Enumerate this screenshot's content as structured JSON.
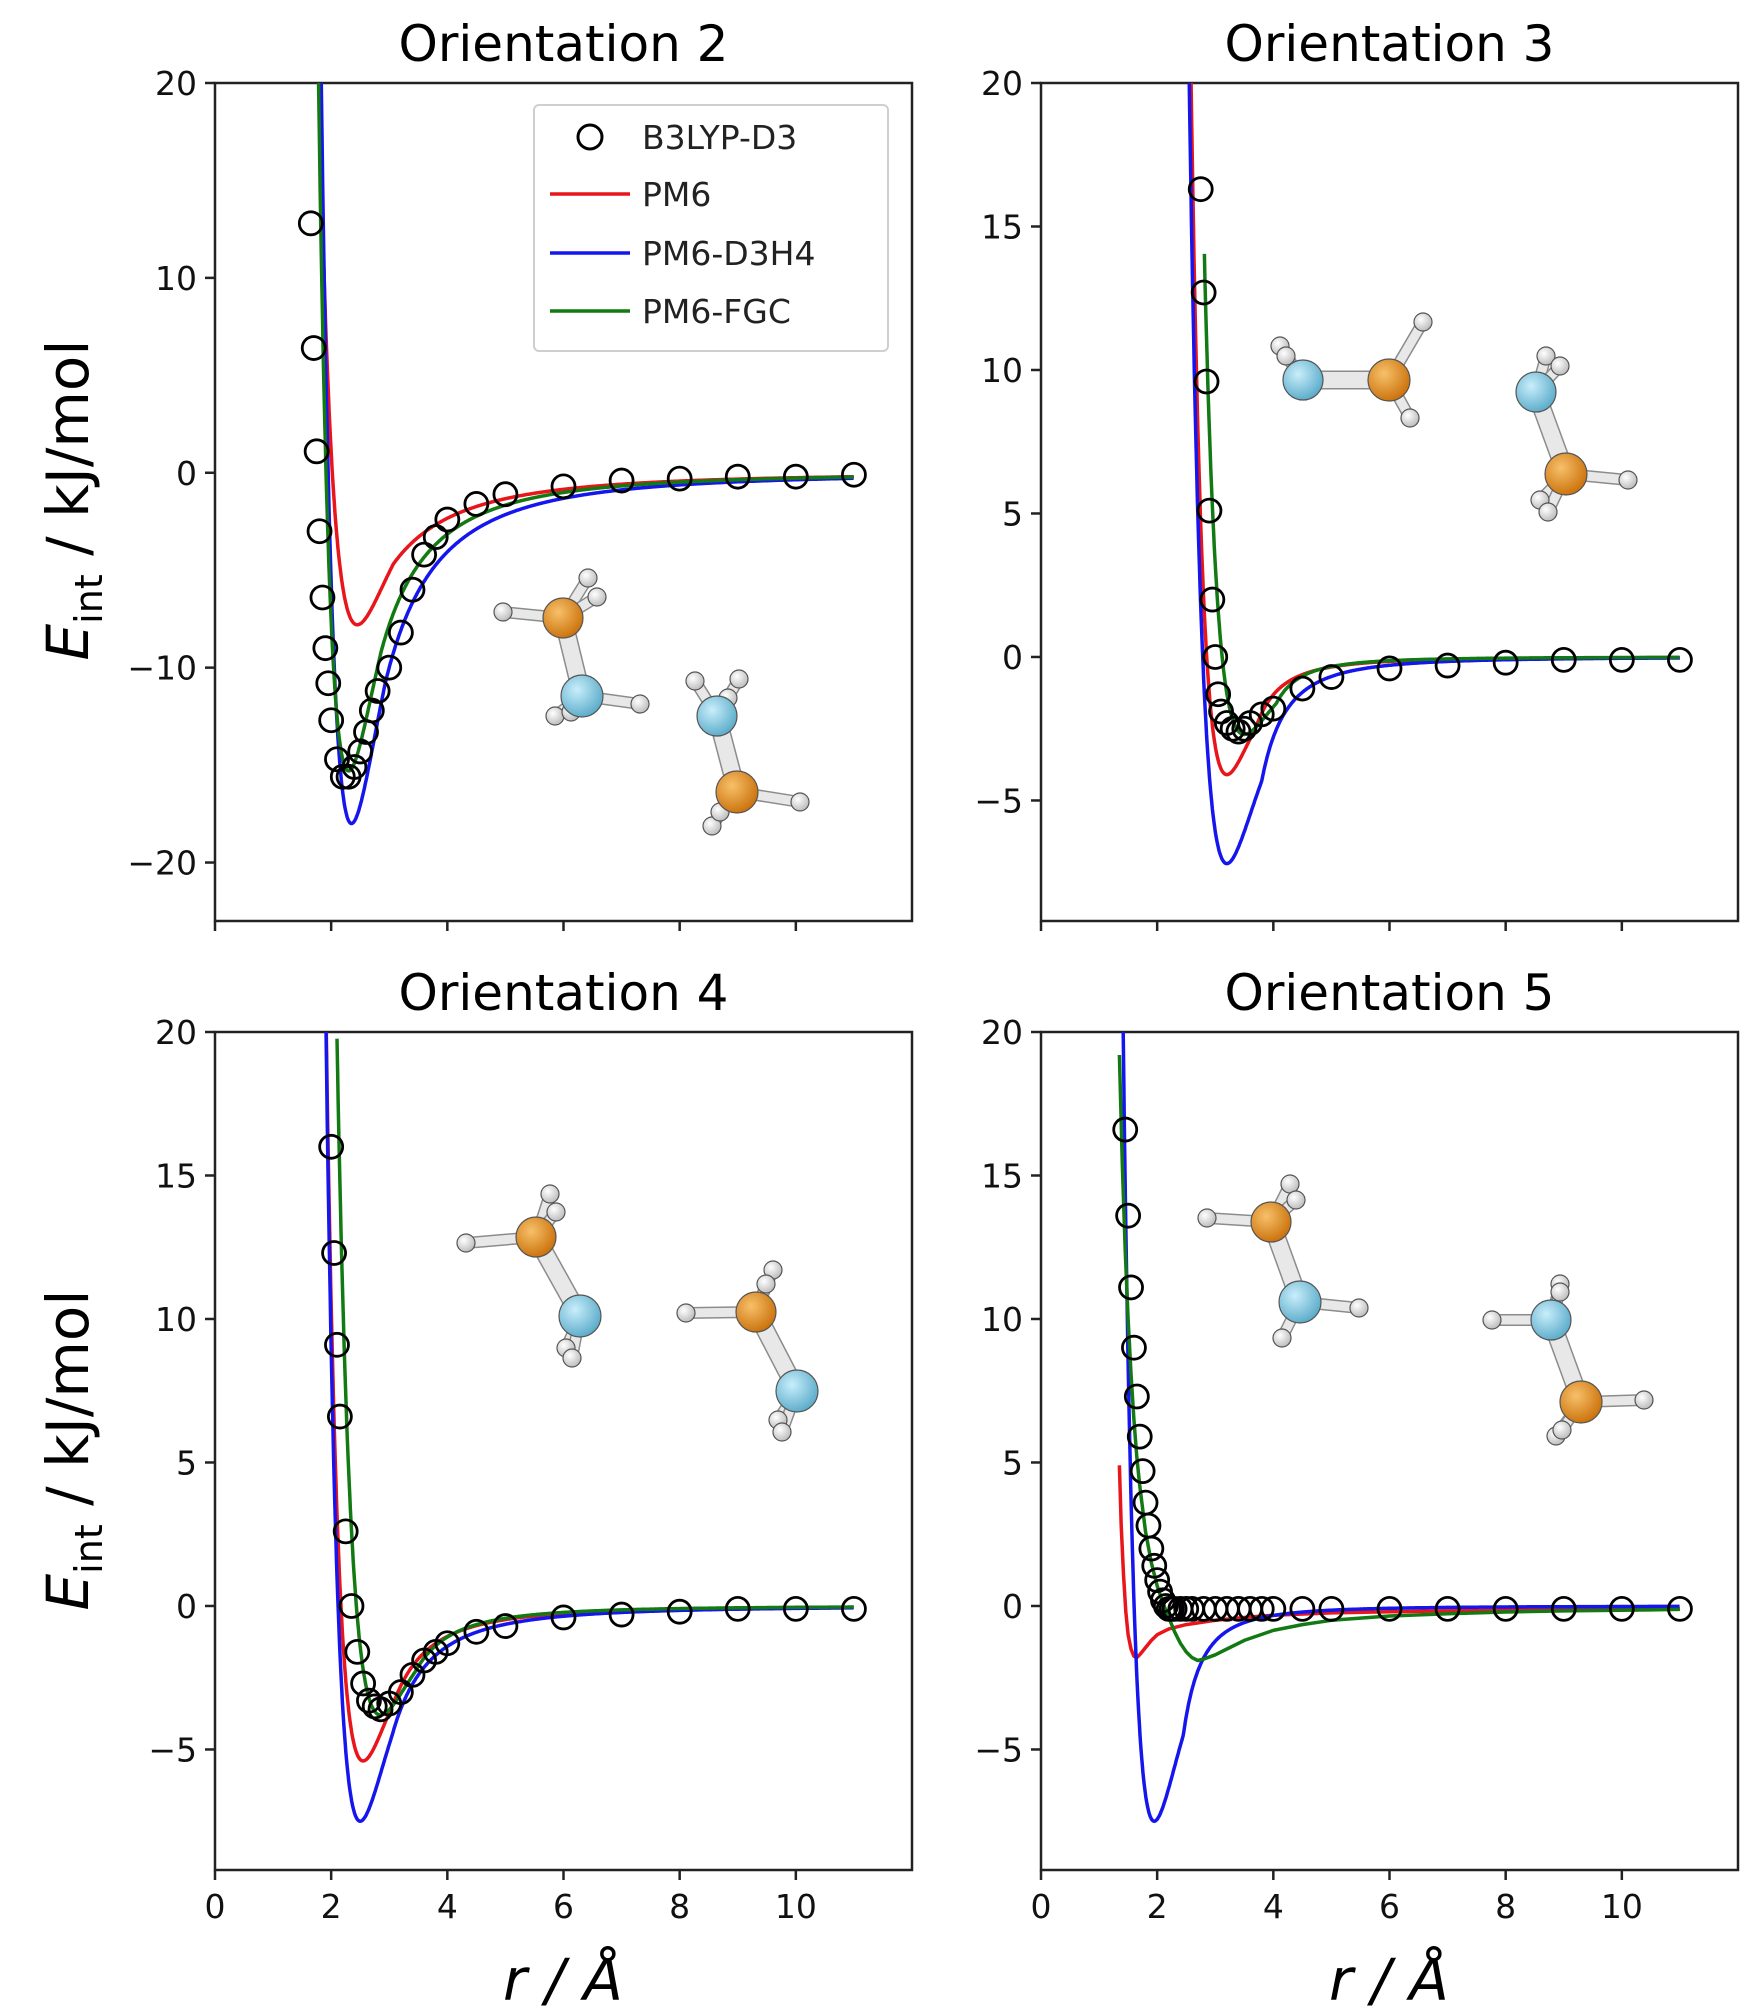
{
  "figure": {
    "ylabel_main": "E",
    "ylabel_sub": "int",
    "ylabel_unit": " / kJ/mol",
    "xlabel_main": "r",
    "xlabel_unit": " / Å"
  },
  "colors": {
    "B3LYP-D3": "#000000",
    "PM6": "#e8161b",
    "PM6-D3H4": "#1515ee",
    "PM6-FGC": "#137a13"
  },
  "chart_data": [
    {
      "type": "line",
      "title": "Orientation 2",
      "xlabel": "r / Å",
      "ylabel": "E_int / kJ/mol",
      "xlim": [
        0,
        12
      ],
      "ylim": [
        -23,
        20
      ],
      "xticks": [
        0,
        2,
        4,
        6,
        8,
        10
      ],
      "yticks": [
        -20,
        -10,
        0,
        10,
        20
      ],
      "legend": {
        "position": "top-right",
        "entries": [
          "B3LYP-D3",
          "PM6",
          "PM6-D3H4",
          "PM6-FGC"
        ]
      },
      "scatter": {
        "name": "B3LYP-D3",
        "x": [
          1.65,
          1.7,
          1.75,
          1.8,
          1.85,
          1.9,
          1.95,
          2.0,
          2.1,
          2.2,
          2.3,
          2.4,
          2.5,
          2.6,
          2.7,
          2.8,
          3.0,
          3.2,
          3.4,
          3.6,
          3.8,
          4.0,
          4.5,
          5.0,
          6.0,
          7.0,
          8.0,
          9.0,
          10.0,
          11.0
        ],
        "y": [
          12.8,
          6.4,
          1.1,
          -3.0,
          -6.4,
          -9.0,
          -10.8,
          -12.7,
          -14.7,
          -15.6,
          -15.6,
          -15.1,
          -14.3,
          -13.3,
          -12.2,
          -11.2,
          -10.0,
          -8.2,
          -6.0,
          -4.2,
          -3.3,
          -2.4,
          -1.6,
          -1.1,
          -0.7,
          -0.4,
          -0.3,
          -0.2,
          -0.2,
          -0.1
        ]
      },
      "series": [
        {
          "name": "PM6",
          "params": {
            "eps": 7.8,
            "r0": 2.45,
            "w": 0.62,
            "tail": 5.5
          }
        },
        {
          "name": "PM6-D3H4",
          "params": {
            "eps": 18.0,
            "r0": 2.35,
            "w": 0.58,
            "tail": 4.2
          }
        },
        {
          "name": "PM6-FGC",
          "params": {
            "eps": 15.3,
            "r0": 2.3,
            "w": 0.56,
            "tail": 4.0
          }
        }
      ]
    },
    {
      "type": "line",
      "title": "Orientation 3",
      "xlabel": "r / Å",
      "ylabel": "E_int / kJ/mol",
      "xlim": [
        0,
        12
      ],
      "ylim": [
        -9.2,
        20
      ],
      "xticks": [
        0,
        2,
        4,
        6,
        8,
        10
      ],
      "yticks": [
        -5,
        0,
        5,
        10,
        15,
        20
      ],
      "scatter": {
        "name": "B3LYP-D3",
        "x": [
          2.75,
          2.8,
          2.85,
          2.9,
          2.95,
          3.0,
          3.05,
          3.1,
          3.2,
          3.3,
          3.4,
          3.5,
          3.6,
          3.8,
          4.0,
          4.5,
          5.0,
          6.0,
          7.0,
          8.0,
          9.0,
          10.0,
          11.0
        ],
        "y": [
          16.3,
          12.7,
          9.6,
          5.1,
          2.0,
          0.0,
          -1.3,
          -1.9,
          -2.3,
          -2.5,
          -2.6,
          -2.5,
          -2.3,
          -2.0,
          -1.8,
          -1.1,
          -0.7,
          -0.4,
          -0.3,
          -0.2,
          -0.1,
          -0.1,
          -0.1
        ]
      },
      "series": [
        {
          "name": "PM6",
          "params": {
            "eps": 4.1,
            "r0": 3.2,
            "w": 0.5,
            "tail": 2.0
          }
        },
        {
          "name": "PM6-D3H4",
          "params": {
            "eps": 7.2,
            "r0": 3.2,
            "w": 0.6,
            "tail": 2.0
          }
        },
        {
          "name": "PM6-FGC",
          "params": {
            "eps": 2.7,
            "r0": 3.5,
            "w": 0.55,
            "tail": 2.0
          }
        }
      ]
    },
    {
      "type": "line",
      "title": "Orientation 4",
      "xlabel": "r / Å",
      "ylabel": "E_int / kJ/mol",
      "xlim": [
        0,
        12
      ],
      "ylim": [
        -9.2,
        20
      ],
      "xticks": [
        0,
        2,
        4,
        6,
        8,
        10
      ],
      "yticks": [
        -5,
        0,
        5,
        10,
        15,
        20
      ],
      "scatter": {
        "name": "B3LYP-D3",
        "x": [
          2.0,
          2.05,
          2.1,
          2.15,
          2.25,
          2.35,
          2.45,
          2.55,
          2.65,
          2.75,
          2.85,
          3.0,
          3.2,
          3.4,
          3.6,
          3.8,
          4.0,
          4.5,
          5.0,
          6.0,
          7.0,
          8.0,
          9.0,
          10.0,
          11.0
        ],
        "y": [
          16.0,
          12.3,
          9.1,
          6.6,
          2.6,
          0.0,
          -1.6,
          -2.7,
          -3.3,
          -3.5,
          -3.6,
          -3.4,
          -3.0,
          -2.4,
          -1.9,
          -1.6,
          -1.3,
          -0.9,
          -0.7,
          -0.4,
          -0.3,
          -0.2,
          -0.1,
          -0.1,
          -0.1
        ]
      },
      "series": [
        {
          "name": "PM6",
          "params": {
            "eps": 5.4,
            "r0": 2.55,
            "w": 0.55,
            "tail": 3.0
          }
        },
        {
          "name": "PM6-D3H4",
          "params": {
            "eps": 7.5,
            "r0": 2.5,
            "w": 0.55,
            "tail": 3.0
          }
        },
        {
          "name": "PM6-FGC",
          "params": {
            "eps": 3.8,
            "r0": 2.85,
            "w": 0.6,
            "tail": 3.0
          }
        }
      ]
    },
    {
      "type": "line",
      "title": "Orientation 5",
      "xlabel": "r / Å",
      "ylabel": "E_int / kJ/mol",
      "xlim": [
        0,
        12
      ],
      "ylim": [
        -9.2,
        20
      ],
      "xticks": [
        0,
        2,
        4,
        6,
        8,
        10
      ],
      "yticks": [
        -5,
        0,
        5,
        10,
        15,
        20
      ],
      "scatter": {
        "name": "B3LYP-D3",
        "x": [
          1.45,
          1.5,
          1.55,
          1.6,
          1.65,
          1.7,
          1.75,
          1.8,
          1.85,
          1.9,
          1.95,
          2.0,
          2.05,
          2.1,
          2.15,
          2.2,
          2.25,
          2.3,
          2.4,
          2.5,
          2.6,
          2.8,
          3.0,
          3.2,
          3.4,
          3.6,
          3.8,
          4.0,
          4.5,
          5.0,
          6.0,
          7.0,
          8.0,
          9.0,
          10.0,
          11.0
        ],
        "y": [
          16.6,
          13.6,
          11.1,
          9.0,
          7.3,
          5.9,
          4.7,
          3.6,
          2.8,
          2.0,
          1.4,
          0.9,
          0.5,
          0.2,
          0.0,
          -0.1,
          -0.1,
          -0.1,
          -0.1,
          -0.1,
          -0.1,
          -0.1,
          -0.1,
          -0.1,
          -0.1,
          -0.1,
          -0.1,
          -0.1,
          -0.1,
          -0.1,
          -0.1,
          -0.1,
          -0.1,
          -0.1,
          -0.1,
          -0.1
        ]
      },
      "series": [
        {
          "name": "PM6",
          "x": [
            1.35,
            1.38,
            1.42,
            1.46,
            1.5,
            1.55,
            1.6,
            1.65,
            1.7,
            1.8,
            1.9,
            2.0,
            2.2,
            2.5,
            3.0,
            3.5,
            4.0,
            5.0,
            6.0,
            7.0,
            8.0,
            9.0,
            10.0,
            11.0
          ],
          "y": [
            4.9,
            2.8,
            1.1,
            -0.2,
            -1.0,
            -1.5,
            -1.75,
            -1.8,
            -1.7,
            -1.45,
            -1.2,
            -1.0,
            -0.8,
            -0.65,
            -0.5,
            -0.4,
            -0.32,
            -0.24,
            -0.2,
            -0.17,
            -0.15,
            -0.13,
            -0.12,
            -0.1
          ]
        },
        {
          "name": "PM6-D3H4",
          "params": {
            "eps": 7.5,
            "r0": 1.95,
            "w": 0.5,
            "tail": 1.5
          }
        },
        {
          "name": "PM6-FGC",
          "x": [
            1.35,
            1.4,
            1.45,
            1.5,
            1.55,
            1.6,
            1.65,
            1.7,
            1.8,
            1.9,
            2.0,
            2.1,
            2.2,
            2.3,
            2.4,
            2.5,
            2.6,
            2.7,
            2.8,
            3.0,
            3.2,
            3.5,
            4.0,
            4.5,
            5.0,
            6.0,
            7.0,
            8.0,
            9.0,
            10.0,
            11.0
          ],
          "y": [
            19.2,
            15.4,
            12.4,
            10.0,
            8.1,
            6.5,
            5.2,
            4.2,
            2.6,
            1.5,
            0.7,
            0.1,
            -0.4,
            -0.9,
            -1.3,
            -1.6,
            -1.8,
            -1.9,
            -1.85,
            -1.7,
            -1.5,
            -1.2,
            -0.85,
            -0.65,
            -0.5,
            -0.35,
            -0.27,
            -0.21,
            -0.17,
            -0.15,
            -0.12
          ]
        }
      ]
    }
  ]
}
